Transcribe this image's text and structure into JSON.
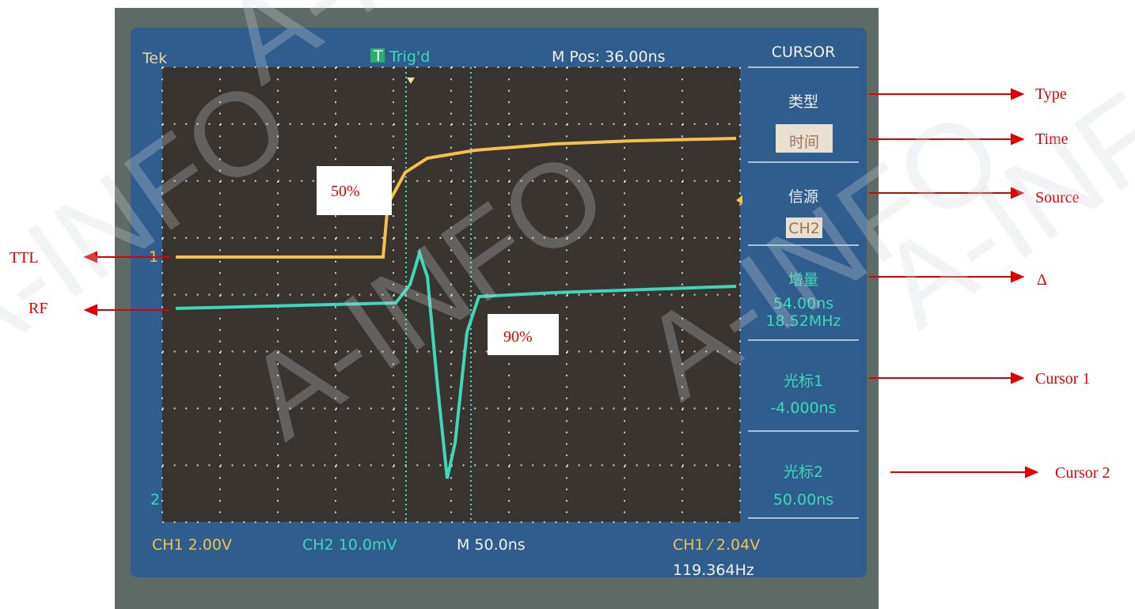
{
  "screen": {
    "brand": "Tek",
    "trigger_icon": "T",
    "trigger_state": "Trig'd",
    "position": "M Pos: 36.00ns",
    "menu": {
      "title": "CURSOR",
      "type_label": "类型",
      "type_value": "时间",
      "source_label": "信源",
      "source_value": "CH2",
      "delta_label": "增量",
      "delta_time": "54.00ns",
      "delta_freq": "18.52MHz",
      "cursor1_label": "光标1",
      "cursor1_value": "-4.000ns",
      "cursor2_label": "光标2",
      "cursor2_value": "50.00ns"
    },
    "ch1_marker": "1",
    "ch2_marker": "2",
    "status": {
      "ch1": "CH1  2.00V",
      "ch2": "CH2  10.0mV",
      "timebase": "M 50.0ns",
      "trigger": "CH1 ⁄ 2.04V",
      "frequency": "119.364Hz"
    }
  },
  "annotations": {
    "rise": "50%",
    "fall": "90%",
    "ttl": "TTL",
    "rf": "RF",
    "type": "Type",
    "time": "Time",
    "source": "Source",
    "delta": "Δ",
    "cursor1": "Cursor 1",
    "cursor2": "Cursor 2"
  },
  "watermark": "A-INFO"
}
